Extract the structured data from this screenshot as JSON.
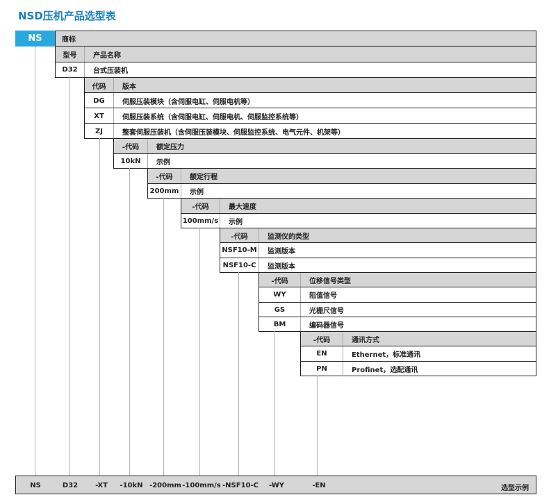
{
  "title": "NSD压机产品选型表",
  "brand": {
    "code": "NS",
    "label": "商标"
  },
  "blocks": [
    {
      "header": {
        "code": "型号",
        "label": "产品名称"
      },
      "rows": [
        {
          "code": "D32",
          "label": "台式压装机"
        }
      ]
    },
    {
      "header": {
        "code": "代码",
        "label": "版本"
      },
      "rows": [
        {
          "code": "DG",
          "label": "伺服压装模块（含伺服电缸、伺服电机等）"
        },
        {
          "code": "XT",
          "label": "伺服压装系统（含伺服电缸、伺服电机、伺服监控系统等）"
        },
        {
          "code": "ZJ",
          "label": "整套伺服压装机（含伺服压装模块、伺服监控系统、电气元件、机架等）"
        }
      ]
    },
    {
      "header": {
        "code": "-代码",
        "label": "额定压力"
      },
      "rows": [
        {
          "code": "10kN",
          "label": "示例"
        }
      ]
    },
    {
      "header": {
        "code": "-代码",
        "label": "额定行程"
      },
      "rows": [
        {
          "code": "200mm",
          "label": "示例"
        }
      ]
    },
    {
      "header": {
        "code": "-代码",
        "label": "最大速度"
      },
      "rows": [
        {
          "code": "100mm/s",
          "label": "示例"
        }
      ]
    },
    {
      "header": {
        "code": "-代码",
        "label": "监测仪的类型"
      },
      "rows": [
        {
          "code": "NSF10-M",
          "label": "监测版本"
        },
        {
          "code": "NSF10-C",
          "label": "监测版本"
        }
      ]
    },
    {
      "header": {
        "code": "-代码",
        "label": "位移信号类型"
      },
      "rows": [
        {
          "code": "WY",
          "label": "阻值信号"
        },
        {
          "code": "GS",
          "label": "光栅尺信号"
        },
        {
          "code": "BM",
          "label": "编码器信号"
        }
      ]
    },
    {
      "header": {
        "code": "-代码",
        "label": "通讯方式"
      },
      "rows": [
        {
          "code": "EN",
          "label": "Ethernet，标准通讯"
        },
        {
          "code": "PN",
          "label": "Profinet，选配通讯"
        }
      ]
    }
  ],
  "example": {
    "parts": [
      "NS",
      "D32",
      "-XT",
      "-10kN",
      "-200mm",
      "-100mm/s",
      "-NSF10-C",
      "-WY",
      "-EN"
    ],
    "label": "选型示例"
  },
  "colors": {
    "title": "#1a7fc1",
    "brand": "#29a8e0",
    "header_bg": "#d6d6d6"
  }
}
